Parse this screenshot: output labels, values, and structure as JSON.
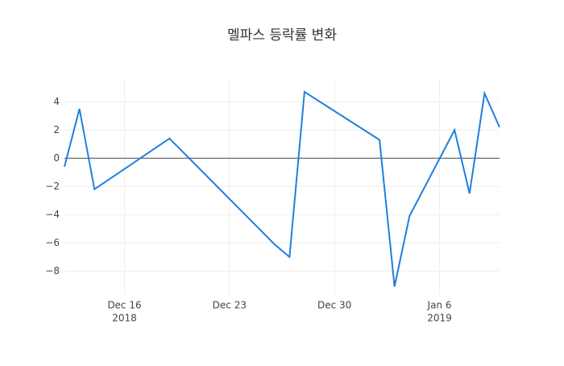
{
  "chart_data": {
    "type": "line",
    "title": "멜파스 등락률 변화",
    "x": [
      "2018-12-12",
      "2018-12-13",
      "2018-12-14",
      "2018-12-19",
      "2018-12-26",
      "2018-12-27",
      "2018-12-28",
      "2019-01-02",
      "2019-01-03",
      "2019-01-04",
      "2019-01-07",
      "2019-01-08",
      "2019-01-09",
      "2019-01-10"
    ],
    "values": [
      -0.6,
      3.5,
      -2.2,
      1.4,
      -6.1,
      -7.0,
      4.7,
      1.3,
      -9.1,
      -4.1,
      2.0,
      -2.5,
      4.6,
      2.2
    ],
    "color": "#1f7fdf",
    "xlim": [
      "2018-12-12",
      "2019-01-10"
    ],
    "xticks": [
      {
        "value": "2018-12-16",
        "label": "Dec 16",
        "year": "2018"
      },
      {
        "value": "2018-12-23",
        "label": "Dec 23"
      },
      {
        "value": "2018-12-30",
        "label": "Dec 30"
      },
      {
        "value": "2019-01-06",
        "label": "Jan 6",
        "year": "2019"
      }
    ],
    "ylim": [
      -9.7,
      5.5
    ],
    "yticks": [
      4,
      2,
      0,
      {
        "value": -2,
        "label": "−2"
      },
      {
        "value": -4,
        "label": "−4"
      },
      {
        "value": -6,
        "label": "−6"
      },
      {
        "value": -8,
        "label": "−8"
      }
    ],
    "grid": true
  }
}
